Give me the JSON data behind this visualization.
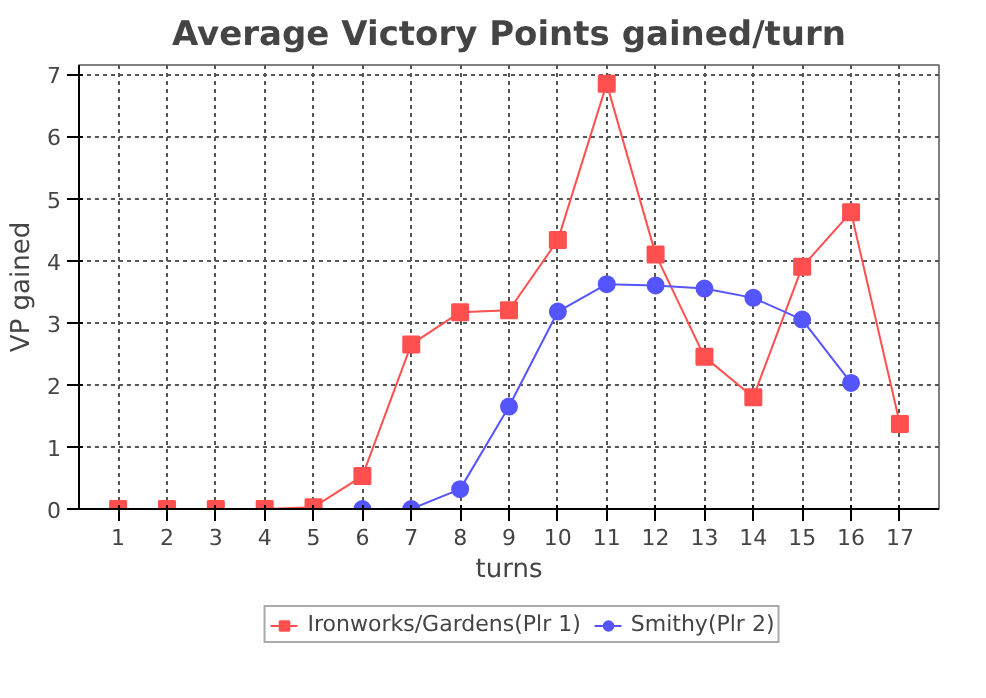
{
  "chart_data": {
    "type": "line",
    "title": "Average Victory Points gained/turn",
    "xlabel": "turns",
    "ylabel": "VP gained",
    "xlim": [
      0.2,
      17.8
    ],
    "xticks": [
      1,
      2,
      3,
      4,
      5,
      6,
      7,
      8,
      9,
      10,
      11,
      12,
      13,
      14,
      15,
      16,
      17
    ],
    "ylim": [
      0,
      7.15
    ],
    "yticks": [
      0,
      1,
      2,
      3,
      4,
      5,
      6,
      7
    ],
    "grid": true,
    "legend": "bottom",
    "series": [
      {
        "name": "Ironworks/Gardens(Plr 1)",
        "color": "#ff4f4f",
        "marker": "square",
        "x": [
          1,
          2,
          3,
          4,
          5,
          6,
          7,
          8,
          9,
          10,
          11,
          12,
          13,
          14,
          15,
          16,
          17
        ],
        "values": [
          0,
          0,
          0,
          0,
          0.03,
          0.53,
          2.65,
          3.17,
          3.2,
          4.33,
          6.85,
          4.1,
          2.45,
          1.8,
          3.9,
          4.78,
          1.37
        ]
      },
      {
        "name": "Smithy(Plr 2)",
        "color": "#5555ff",
        "marker": "circle",
        "x": [
          6,
          7,
          8,
          9,
          10,
          11,
          12,
          13,
          14,
          15,
          16
        ],
        "values": [
          0,
          0,
          0.32,
          1.65,
          3.18,
          3.62,
          3.6,
          3.55,
          3.4,
          3.05,
          2.03
        ]
      }
    ]
  }
}
